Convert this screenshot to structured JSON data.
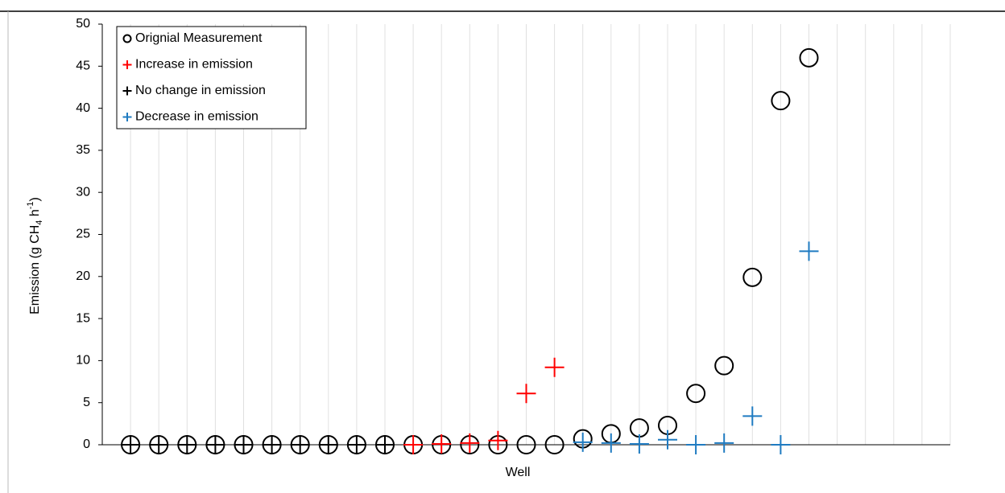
{
  "chart_data": {
    "type": "scatter",
    "x_label": "Well",
    "y_label": {
      "prefix": "Emission (g CH",
      "sub": "4",
      "mid": " h",
      "sup": "-1",
      "suffix": ")"
    },
    "xlim": [
      0,
      30
    ],
    "ylim": [
      0,
      50
    ],
    "yticks": [
      0,
      5,
      10,
      15,
      20,
      25,
      30,
      35,
      40,
      45,
      50
    ],
    "grid": true,
    "legend": "top-left",
    "series": [
      {
        "name": "Orignial Measurement",
        "color": "#000000",
        "marker": "circle",
        "x": [
          1,
          2,
          3,
          4,
          5,
          6,
          7,
          8,
          9,
          10,
          11,
          12,
          13,
          14,
          15,
          16,
          17,
          18,
          19,
          20,
          21,
          22,
          23,
          24,
          25
        ],
        "values": [
          0,
          0,
          0,
          0,
          0,
          0,
          0,
          0,
          0,
          0,
          0,
          0,
          0,
          0,
          0,
          0,
          0.7,
          1.3,
          2,
          2.3,
          6.1,
          9.4,
          19.9,
          40.9,
          46
        ]
      },
      {
        "name": "Increase in emission",
        "color": "#ff0000",
        "marker": "plus",
        "x": [
          11,
          12,
          13,
          14,
          15,
          16
        ],
        "values": [
          0,
          0.1,
          0.2,
          0.5,
          6.1,
          9.2
        ]
      },
      {
        "name": "No change in emission",
        "color": "#000000",
        "marker": "plus",
        "x": [
          1,
          2,
          3,
          4,
          5,
          6,
          7,
          8,
          9,
          10
        ],
        "values": [
          0,
          0,
          0,
          0,
          0,
          0,
          0,
          0,
          0,
          0
        ]
      },
      {
        "name": "Decrease in emission",
        "color": "#1f7bc1",
        "marker": "plus",
        "x": [
          17,
          18,
          19,
          20,
          21,
          22,
          23,
          24,
          25
        ],
        "values": [
          0.3,
          0.2,
          0.1,
          0.6,
          0,
          0.2,
          3.4,
          0,
          23
        ]
      }
    ]
  }
}
